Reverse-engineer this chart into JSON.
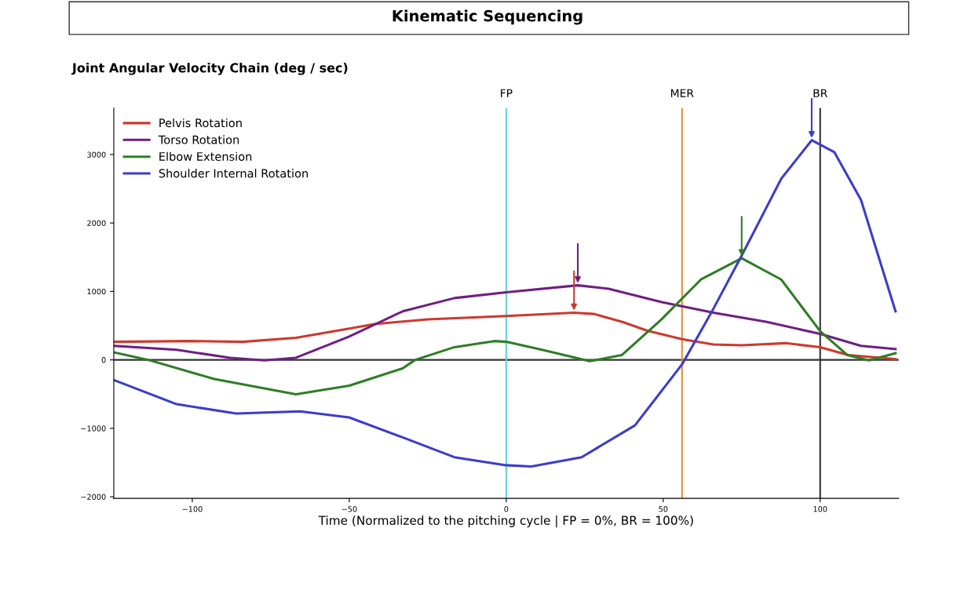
{
  "chart_data": {
    "type": "line",
    "title": "Kinematic Sequencing",
    "subtitle": "Joint Angular Velocity Chain (deg / sec)",
    "xlabel": "Time (Normalized to the pitching cycle | FP = 0%, BR = 100%)",
    "xlim": [
      -125,
      125
    ],
    "ylim": [
      -2023,
      3678
    ],
    "xticks": [
      {
        "value": -100,
        "label": "−100"
      },
      {
        "value": -50,
        "label": "−50"
      },
      0,
      50,
      100
    ],
    "yticks": [
      {
        "value": -2000,
        "label": "−2000"
      },
      {
        "value": -1000,
        "label": "−1000"
      },
      0,
      1000,
      2000,
      3000
    ],
    "grid": false,
    "legend": "top left",
    "line_style": "solid",
    "marker": "none",
    "ref_lines": [
      {
        "axis": "y",
        "value": 0,
        "label": null,
        "color": "#333333"
      },
      {
        "axis": "x",
        "value": 0,
        "label": "FP",
        "color": "#5fd3e0"
      },
      {
        "axis": "x",
        "value": 56,
        "label": "MER",
        "color": "#d9923a"
      },
      {
        "axis": "x",
        "value": 100,
        "label": "BR",
        "color": "#333333"
      }
    ],
    "series": [
      {
        "name": "Pelvis Rotation",
        "color": "#cc3a2e",
        "x": [
          -124.8,
          -101,
          -84,
          -67,
          -50,
          -42,
          -25,
          0,
          21.6,
          28,
          37,
          45,
          56,
          66,
          75,
          89,
          100,
          109,
          124
        ],
        "values": [
          264,
          275,
          264,
          322,
          457,
          523,
          593,
          640,
          690,
          671,
          554,
          426,
          302,
          225,
          213,
          244,
          186,
          70,
          12
        ]
      },
      {
        "name": "Torso Rotation",
        "color": "#6f1f82",
        "x": [
          -124.8,
          -105,
          -88,
          -77,
          -67,
          -50,
          -33,
          -16.5,
          0,
          22.8,
          32.6,
          49.5,
          66,
          83,
          100,
          113,
          124
        ],
        "values": [
          205,
          147,
          31,
          -8,
          31,
          341,
          709,
          903,
          988,
          1089,
          1039,
          845,
          690,
          554,
          380,
          205,
          159
        ]
      },
      {
        "name": "Elbow Extension",
        "color": "#2e7d25",
        "x": [
          -124.8,
          -114,
          -93,
          -67,
          -50,
          -33,
          -29,
          -16.5,
          -3.8,
          0,
          11.4,
          26.6,
          36.8,
          49.5,
          62,
          75,
          87.6,
          100,
          108.7,
          115.5,
          124
        ],
        "values": [
          109,
          0,
          -279,
          -504,
          -376,
          -124,
          0,
          186,
          275,
          264,
          147,
          -19,
          70,
          593,
          1174,
          1485,
          1174,
          419,
          70,
          -8,
          97
        ]
      },
      {
        "name": "Shoulder Internal Rotation",
        "color": "#3c3ccc",
        "x": [
          -124.8,
          -105,
          -86,
          -65.6,
          -50,
          -33,
          -16.5,
          0,
          8,
          24,
          41,
          56,
          66,
          75,
          87.6,
          97.3,
          104.5,
          113,
          124
        ],
        "values": [
          -298,
          -647,
          -783,
          -752,
          -841,
          -1132,
          -1422,
          -1539,
          -1558,
          -1422,
          -957,
          -66,
          748,
          1523,
          2647,
          3209,
          3035,
          2337,
          709
        ]
      }
    ]
  }
}
